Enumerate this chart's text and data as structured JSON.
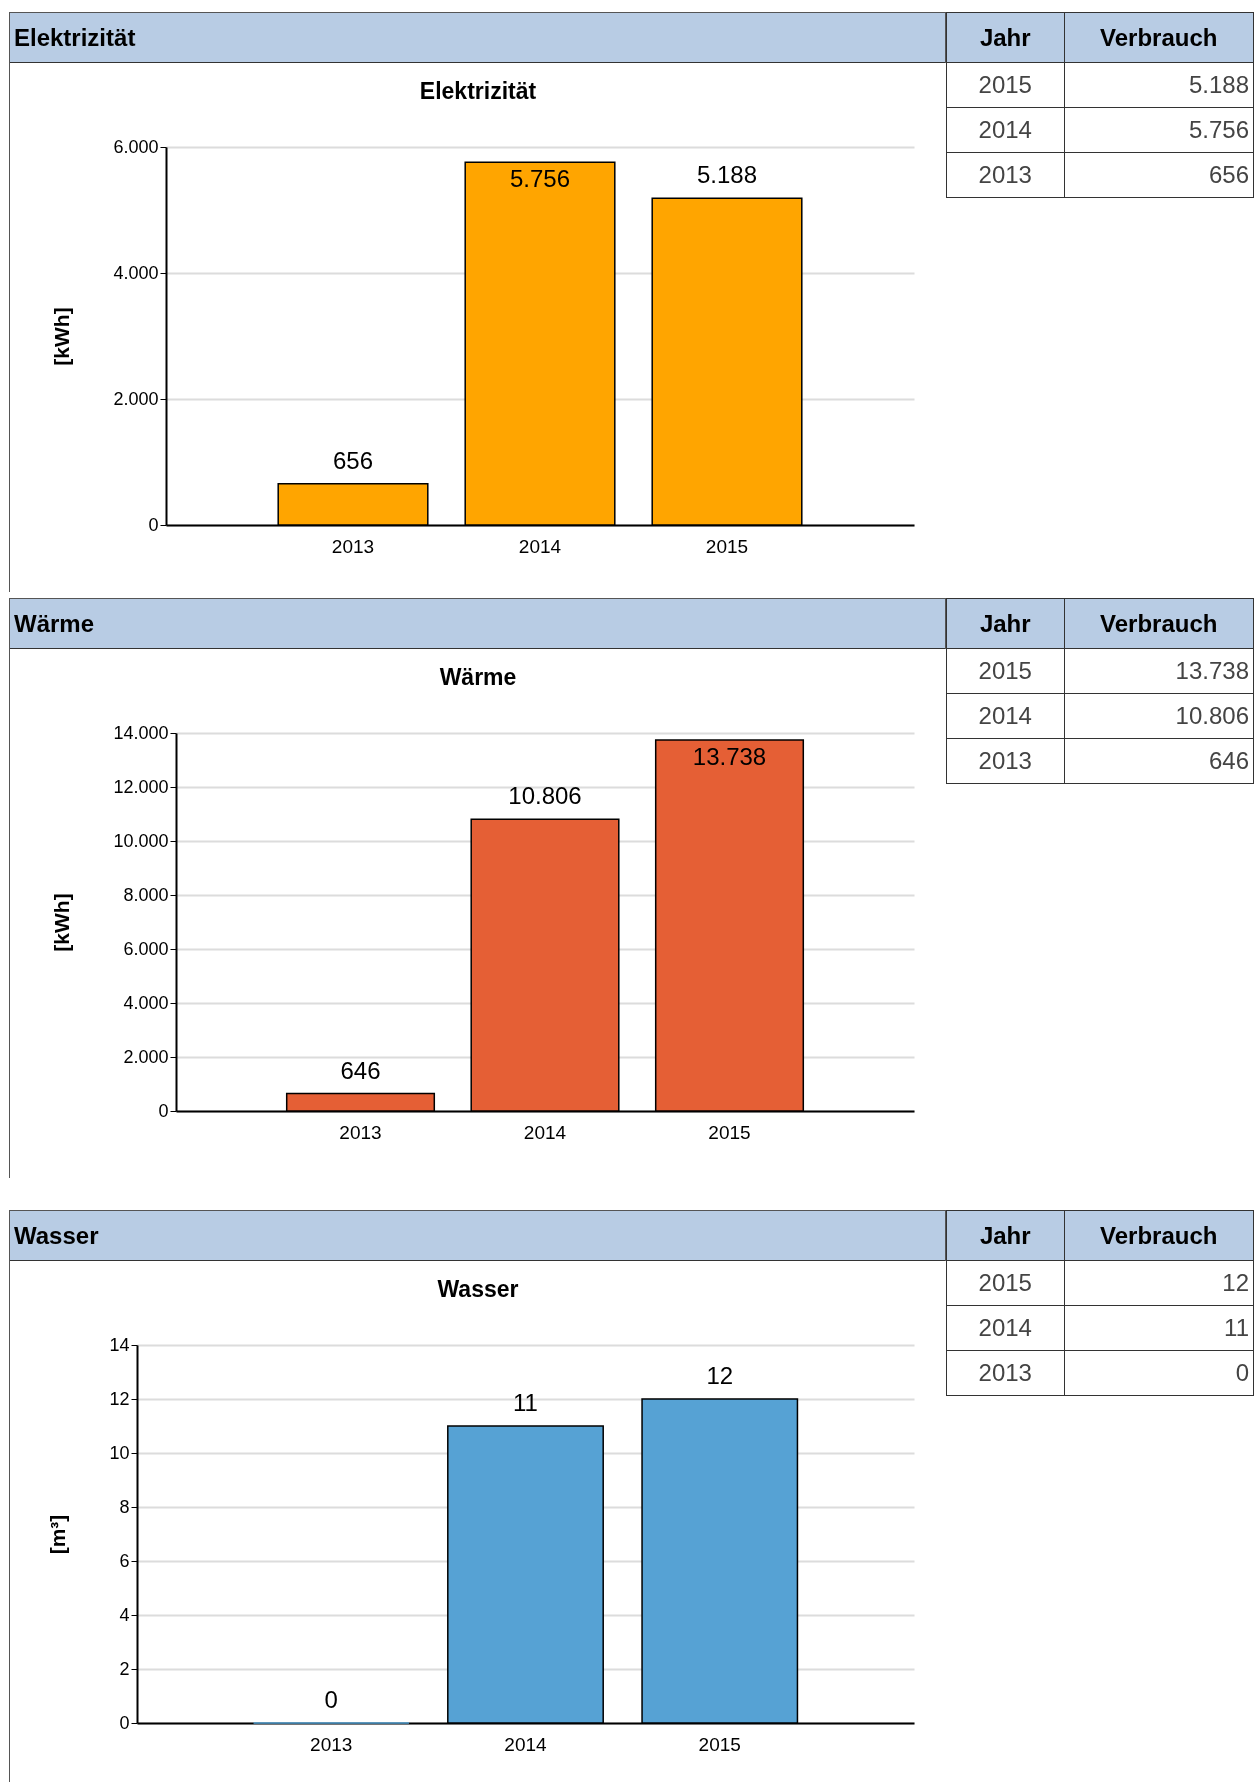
{
  "chart_data": [
    {
      "type": "bar",
      "title": "Elektrizität",
      "subtitle": "Elektrizität",
      "ylabel": "[kWh]",
      "annotations": [
        "Jahr",
        "Verbrauch"
      ],
      "categories": [
        "2013",
        "2014",
        "2015"
      ],
      "values": [
        656,
        5756,
        5188
      ],
      "value_labels": [
        "656",
        "5.756",
        "5.188"
      ],
      "color": "#ffa500",
      "ylim": [
        0,
        6000
      ],
      "yticks": [
        0,
        {
          "value": 2000,
          "label": "2.000"
        },
        {
          "value": 4000,
          "label": "4.000"
        },
        {
          "value": 6000,
          "label": "6.000"
        }
      ],
      "grid": "y"
    },
    {
      "type": "bar",
      "title": "Wärme",
      "subtitle": "Wärme",
      "ylabel": "[kWh]",
      "annotations": [
        "Jahr",
        "Verbrauch"
      ],
      "categories": [
        "2013",
        "2014",
        "2015"
      ],
      "values": [
        646,
        10806,
        13738
      ],
      "value_labels": [
        "646",
        "10.806",
        "13.738"
      ],
      "color": "#e55f35",
      "ylim": [
        0,
        14000
      ],
      "yticks": [
        0,
        {
          "value": 2000,
          "label": "2.000"
        },
        {
          "value": 4000,
          "label": "4.000"
        },
        {
          "value": 6000,
          "label": "6.000"
        },
        {
          "value": 8000,
          "label": "8.000"
        },
        {
          "value": 10000,
          "label": "10.000"
        },
        {
          "value": 12000,
          "label": "12.000"
        },
        {
          "value": 14000,
          "label": "14.000"
        }
      ],
      "grid": "y"
    },
    {
      "type": "bar",
      "title": "Wasser",
      "subtitle": "Wasser",
      "ylabel": "[m³]",
      "annotations": [
        "Jahr",
        "Verbrauch"
      ],
      "categories": [
        "2013",
        "2014",
        "2015"
      ],
      "values": [
        0,
        11,
        12
      ],
      "value_labels": [
        "0",
        "11",
        "12"
      ],
      "color": "#56a2d4",
      "ylim": [
        0,
        14
      ],
      "yticks": [
        0,
        2,
        4,
        6,
        8,
        10,
        12,
        14
      ],
      "grid": "y"
    }
  ]
}
